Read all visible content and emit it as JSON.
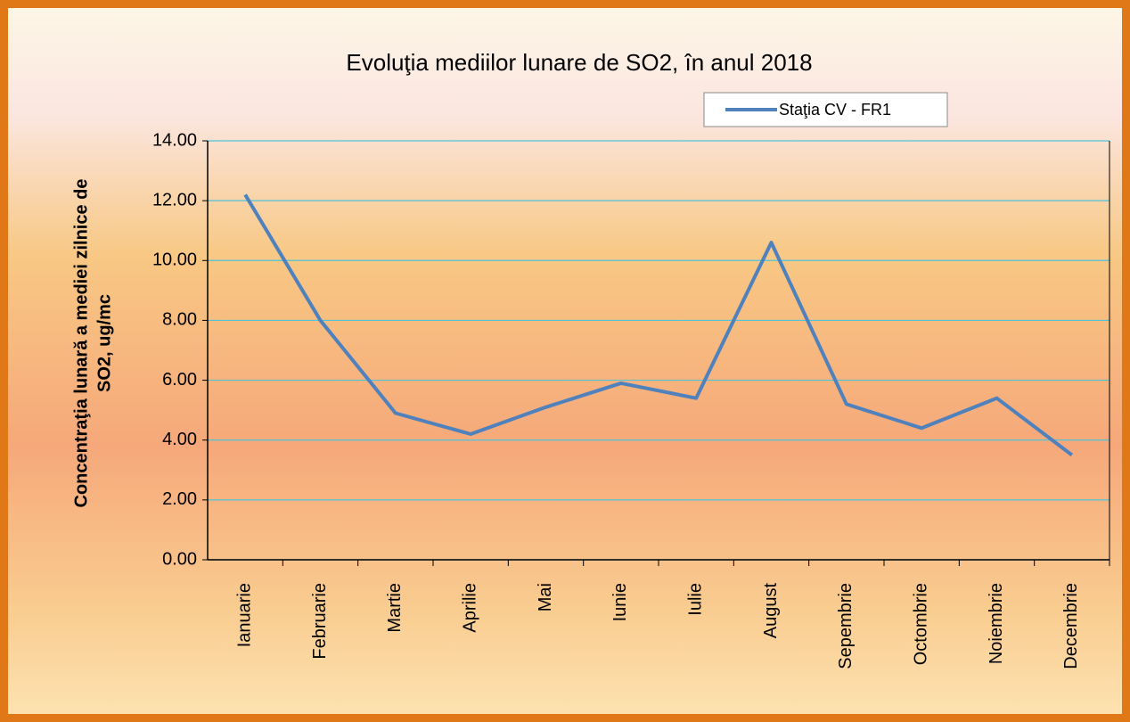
{
  "chart_data": {
    "type": "line",
    "title": "Evoluţia mediilor lunare  de SO2, în anul 2018",
    "y_label": [
      "Concentraţia lunară a mediei zilnice de",
      "SO2, ug/mc"
    ],
    "categories": [
      "Ianuarie",
      "Februarie",
      "Martie",
      "Aprilie",
      "Mai",
      "Iunie",
      "Iulie",
      "August",
      "Sepembrie",
      "Octombrie",
      "Noiembrie",
      "Decembrie"
    ],
    "series": [
      {
        "name": "Staţia CV - FR1",
        "color": "#4f81bd",
        "values": [
          12.2,
          8.0,
          4.9,
          4.2,
          5.1,
          5.9,
          5.4,
          10.6,
          5.2,
          4.4,
          5.4,
          3.5
        ]
      }
    ],
    "ylim": [
      0,
      14
    ],
    "yticks": [
      {
        "value": 0,
        "label": "0.00"
      },
      {
        "value": 2,
        "label": "2.00"
      },
      {
        "value": 4,
        "label": "4.00"
      },
      {
        "value": 6,
        "label": "6.00"
      },
      {
        "value": 8,
        "label": "8.00"
      },
      {
        "value": 10,
        "label": "10.00"
      },
      {
        "value": 12,
        "label": "12.00"
      },
      {
        "value": 14,
        "label": "14.00"
      }
    ],
    "grid": true,
    "legend": "top-right"
  }
}
